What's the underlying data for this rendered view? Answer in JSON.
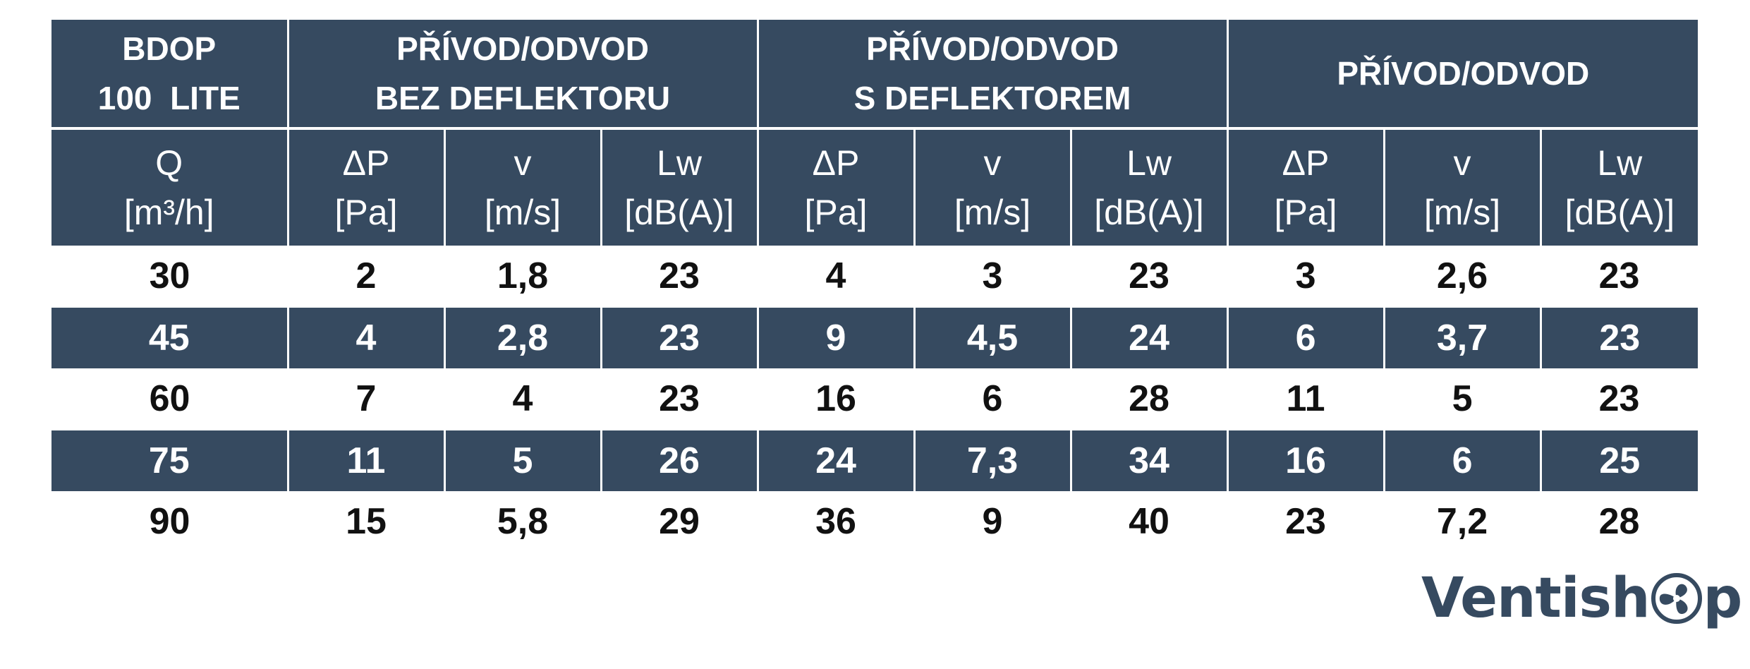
{
  "table": {
    "group_headers": [
      {
        "line1": "BDOP",
        "line2": "100  LITE"
      },
      {
        "line1": "PŘÍVOD/ODVOD",
        "line2": "BEZ DEFLEKTORU"
      },
      {
        "line1": "PŘÍVOD/ODVOD",
        "line2": "S DEFLEKTOREM"
      },
      {
        "line1": "PŘÍVOD/ODVOD",
        "line2": ""
      }
    ],
    "column_headers": [
      {
        "symbol": "Q",
        "unit": "[m³/h]"
      },
      {
        "symbol": "ΔP",
        "unit": "[Pa]"
      },
      {
        "symbol": "v",
        "unit": "[m/s]"
      },
      {
        "symbol": "Lw",
        "unit": "[dB(A)]"
      },
      {
        "symbol": "ΔP",
        "unit": "[Pa]"
      },
      {
        "symbol": "v",
        "unit": "[m/s]"
      },
      {
        "symbol": "Lw",
        "unit": "[dB(A)]"
      },
      {
        "symbol": "ΔP",
        "unit": "[Pa]"
      },
      {
        "symbol": "v",
        "unit": "[m/s]"
      },
      {
        "symbol": "Lw",
        "unit": "[dB(A)]"
      }
    ],
    "rows": [
      [
        "30",
        "2",
        "1,8",
        "23",
        "4",
        "3",
        "23",
        "3",
        "2,6",
        "23"
      ],
      [
        "45",
        "4",
        "2,8",
        "23",
        "9",
        "4,5",
        "24",
        "6",
        "3,7",
        "23"
      ],
      [
        "60",
        "7",
        "4",
        "23",
        "16",
        "6",
        "28",
        "11",
        "5",
        "23"
      ],
      [
        "75",
        "11",
        "5",
        "26",
        "24",
        "7,3",
        "34",
        "16",
        "6",
        "25"
      ],
      [
        "90",
        "15",
        "5,8",
        "29",
        "36",
        "9",
        "40",
        "23",
        "7,2",
        "28"
      ]
    ]
  },
  "logo": {
    "text_left": "Ventish",
    "text_right": "p",
    "icon": "fan-icon"
  },
  "colors": {
    "header_bg": "#364a60",
    "header_text": "#ffffff",
    "body_text": "#111111"
  }
}
